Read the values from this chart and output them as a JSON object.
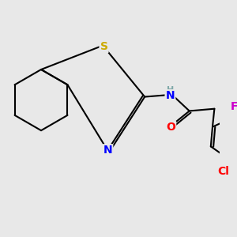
{
  "bg_color": "#e8e8e8",
  "bond_color": "#000000",
  "bond_width": 1.5,
  "atom_colors": {
    "N": "#0000ff",
    "S": "#ccaa00",
    "O": "#ff0000",
    "Cl": "#ff0000",
    "F": "#cc00cc",
    "H": "#7fa8a8",
    "C": "#000000"
  },
  "font_size": 10
}
